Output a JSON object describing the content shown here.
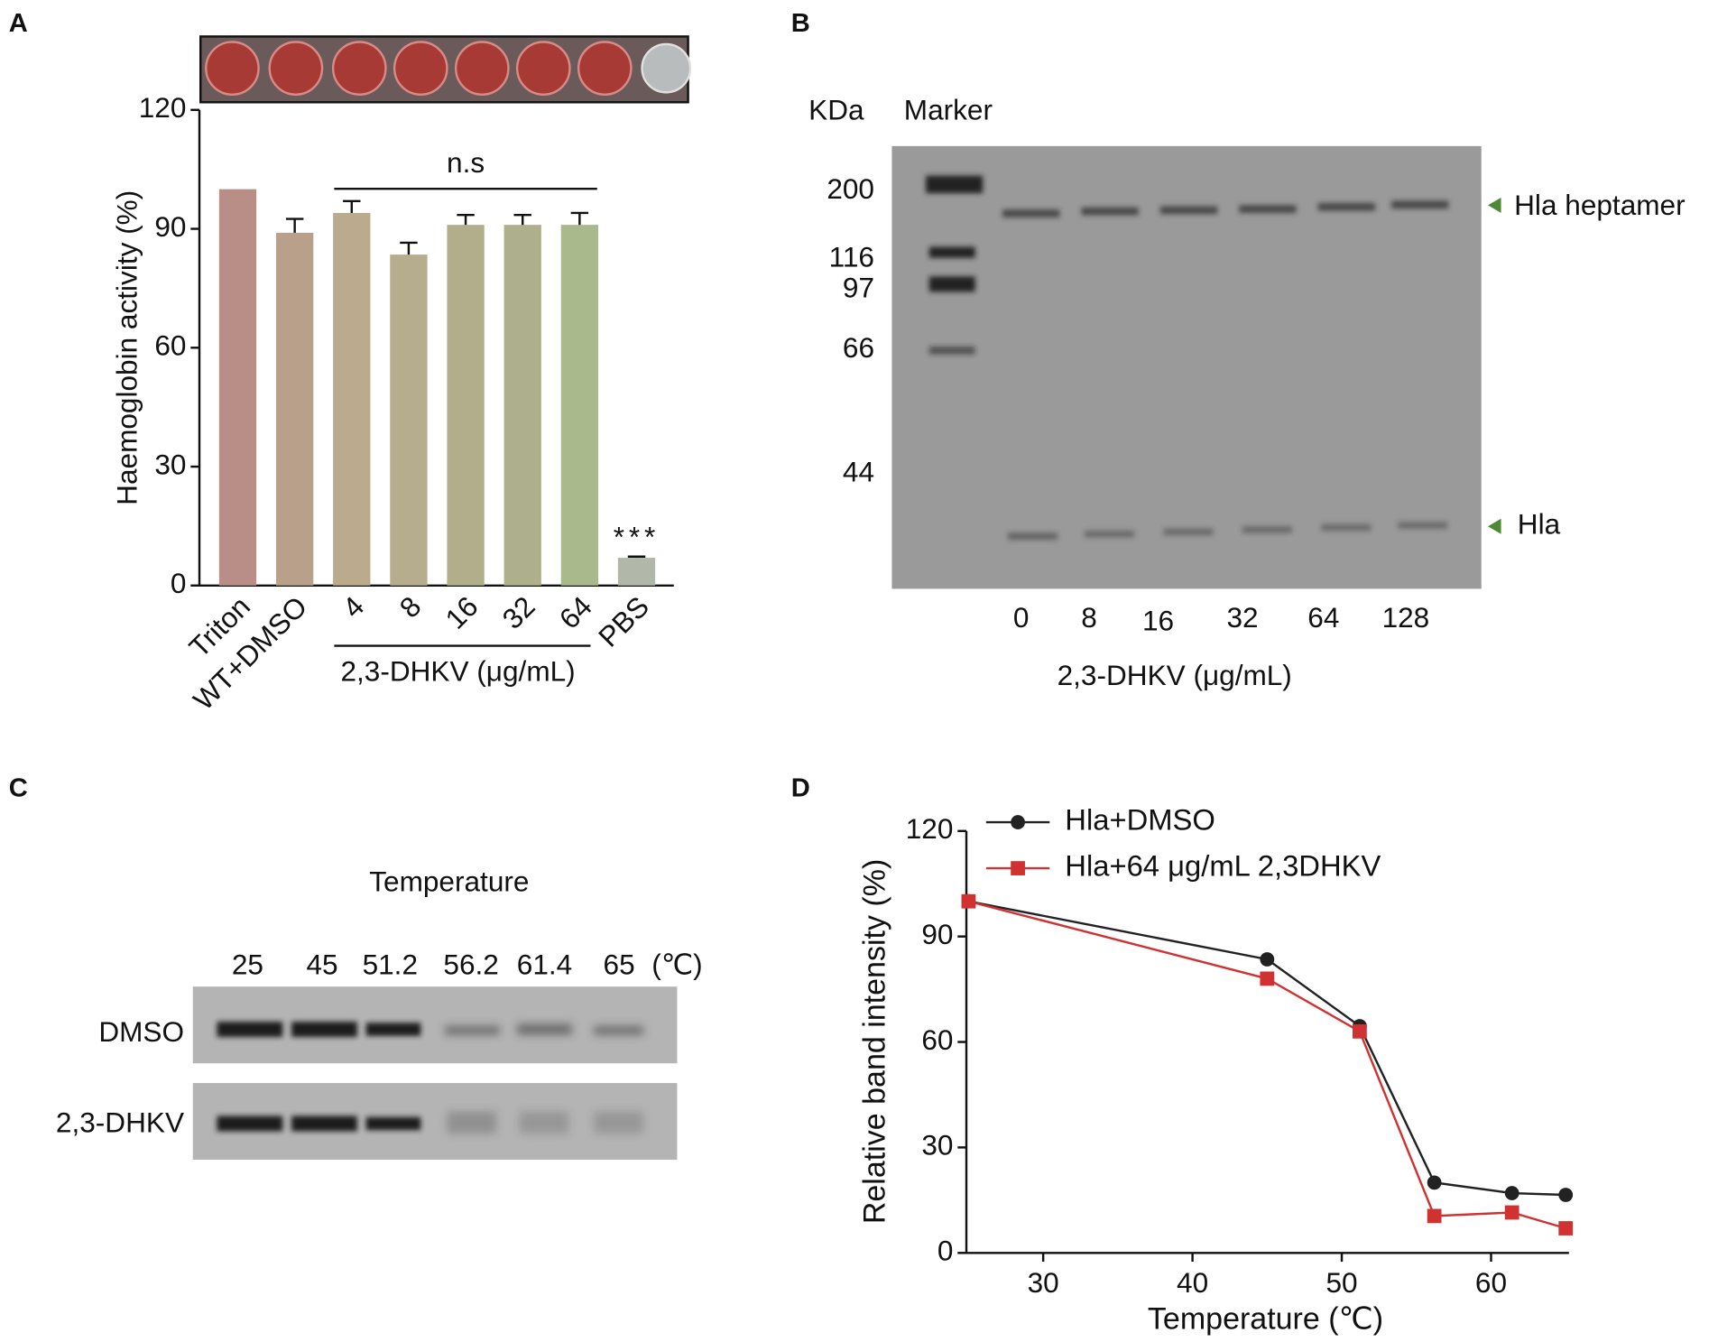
{
  "chart_data": [
    {
      "type": "bar",
      "label": "A",
      "ylabel": "Haemoglobin activity (%)",
      "categories": [
        "Triton",
        "WT+DMSO",
        "4",
        "8",
        "16",
        "32",
        "64",
        "PBS"
      ],
      "values": [
        100,
        89,
        94,
        83.5,
        91,
        91,
        91,
        7
      ],
      "errors": [
        0,
        3.5,
        3,
        3,
        2.5,
        2.5,
        3,
        0.3
      ],
      "colors": [
        "#b98e87",
        "#b9a08a",
        "#b9ab8b",
        "#b5ad8e",
        "#b2ae8c",
        "#adb08b",
        "#a9b98c",
        "#b1b8aa"
      ],
      "ylim": [
        0,
        120
      ],
      "yticks": [
        0,
        30,
        60,
        90,
        120
      ],
      "group_label": "2,3-DHKV (μg/mL)",
      "annotation_ns": "n.s",
      "annotation_sig": "***"
    },
    {
      "type": "line",
      "label": "D",
      "xlabel": "Temperature (℃)",
      "ylabel": "Relative band intensity (%)",
      "x": [
        25,
        45,
        51.2,
        56.2,
        61.4,
        65
      ],
      "series": [
        {
          "name": "Hla+DMSO",
          "color": "#222222",
          "marker": "circle",
          "values": [
            100,
            83.5,
            64.5,
            20,
            17,
            16.5
          ]
        },
        {
          "name": "Hla+64 μg/mL 2,3DHKV",
          "color": "#d03232",
          "marker": "square",
          "values": [
            100,
            78,
            63,
            10.5,
            11.5,
            7
          ]
        }
      ],
      "xlim": [
        25,
        65
      ],
      "xticks": [
        30,
        40,
        50,
        60
      ],
      "ylim": [
        0,
        120
      ],
      "yticks": [
        0,
        30,
        60,
        90,
        120
      ],
      "legend": "upper left"
    }
  ],
  "gel_b": {
    "label": "B",
    "unit": "KDa",
    "marker": "Marker",
    "sizes": [
      "200",
      "116",
      "97",
      "66",
      "44"
    ],
    "lanes": [
      "0",
      "8",
      "16",
      "32",
      "64",
      "128"
    ],
    "xlabel": "2,3-DHKV (μg/mL)",
    "bands": [
      "Hla heptamer",
      "Hla"
    ]
  },
  "gel_c": {
    "label": "C",
    "title": "Temperature",
    "lanes": [
      "25",
      "45",
      "51.2",
      "56.2",
      "61.4",
      "65"
    ],
    "unit": "(℃)",
    "rows": [
      "DMSO",
      "2,3-DHKV"
    ]
  }
}
